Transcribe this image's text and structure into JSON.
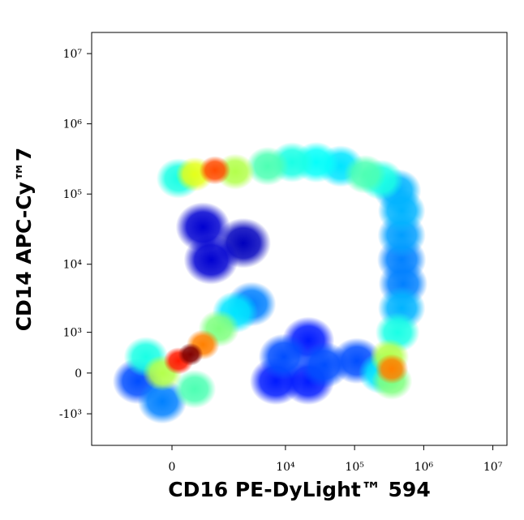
{
  "chart_data": {
    "type": "density-scatter",
    "x_label": "CD16 PE-DyLight™ 594",
    "y_label": "CD14 APC-Cy™7",
    "scale": "biexponential",
    "colormap": "jet",
    "xlim": [
      -3300,
      16000000
    ],
    "ylim": [
      -3000,
      20000000
    ],
    "xticks": [
      0,
      {
        "value": 10000,
        "label": "10⁴"
      },
      {
        "value": 100000,
        "label": "10⁵"
      },
      {
        "value": 1000000,
        "label": "10⁶"
      },
      {
        "value": 10000000,
        "label": "10⁷"
      }
    ],
    "yticks": [
      {
        "value": -1000,
        "label": "-10³"
      },
      0,
      {
        "value": 1000,
        "label": "10³"
      },
      {
        "value": 10000,
        "label": "10⁴"
      },
      {
        "value": 100000,
        "label": "10⁵"
      },
      {
        "value": 1000000,
        "label": "10⁶"
      },
      {
        "value": 10000000,
        "label": "10⁷"
      }
    ],
    "x": [
      2440,
      777,
      560,
      21400,
      7270,
      21400,
      9500,
      36700,
      108000,
      -635,
      3220,
      -150,
      480000,
      503000,
      480000,
      418000,
      480000,
      480000,
      243000,
      63000,
      1850,
      28000,
      -448,
      100,
      12500,
      243000,
      418000,
      5530,
      142000,
      380,
      1045,
      345000,
      1850,
      -150,
      318000,
      380,
      560,
      345000,
      900,
      100,
      302
    ],
    "y": [
      20000,
      11600,
      33900,
      -152,
      -152,
      723,
      314,
      152,
      232,
      -152,
      2680,
      -605,
      11600,
      5270,
      25900,
      112000,
      57600,
      2340,
      0,
      249000,
      2040,
      283000,
      314,
      167000,
      283000,
      159000,
      1000,
      249000,
      191000,
      -311,
      1150,
      -152,
      208000,
      0,
      314,
      191000,
      605,
      75,
      218000,
      232,
      368
    ],
    "density": [
      0.06,
      0.08,
      0.08,
      0.15,
      0.15,
      0.15,
      0.2,
      0.2,
      0.2,
      0.2,
      0.25,
      0.25,
      0.25,
      0.25,
      0.28,
      0.3,
      0.3,
      0.3,
      0.35,
      0.35,
      0.35,
      0.38,
      0.4,
      0.4,
      0.4,
      0.4,
      0.4,
      0.45,
      0.45,
      0.45,
      0.5,
      0.5,
      0.55,
      0.55,
      0.55,
      0.6,
      0.75,
      0.75,
      0.8,
      0.85,
      1.0
    ]
  }
}
